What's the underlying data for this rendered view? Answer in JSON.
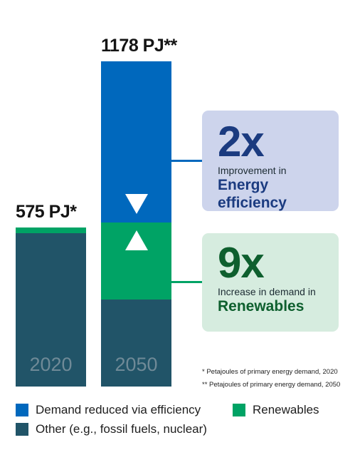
{
  "chart_data": {
    "type": "bar",
    "stacked": true,
    "unit": "PJ",
    "categories": [
      "2020",
      "2050"
    ],
    "total_labels": [
      "575 PJ*",
      "1178 PJ**"
    ],
    "series": [
      {
        "name": "Other (e.g., fossil fuels, nuclear)",
        "values": [
          555,
          315
        ],
        "color": "#215468"
      },
      {
        "name": "Renewables",
        "values": [
          20,
          280
        ],
        "color": "#00a365"
      },
      {
        "name": "Demand reduced via efficiency",
        "values": [
          0,
          583
        ],
        "color": "#0068bd"
      }
    ],
    "ylim": [
      0,
      1178
    ],
    "grid": false,
    "legend_placement": "bottom"
  },
  "callouts": [
    {
      "multiplier": "2x",
      "line1": "Improvement in",
      "line2": "Energy efficiency",
      "bg": "#cdd4ec",
      "accent": "#1b3b80",
      "line_color": "#0068bd"
    },
    {
      "multiplier": "9x",
      "line1": "Increase in demand in",
      "line2": "Renewables",
      "bg": "#d6ecdf",
      "accent": "#0e5f2e",
      "line_color": "#00a365"
    }
  ],
  "arrows": {
    "efficiency": "down-triangle-icon",
    "renewables": "up-triangle-icon"
  },
  "footnotes": [
    "* Petajoules of primary energy demand, 2020",
    "** Petajoules of primary energy demand, 2050"
  ],
  "legend": [
    {
      "label": "Demand reduced via efficiency",
      "color": "#0068bd"
    },
    {
      "label": "Renewables",
      "color": "#00a365"
    },
    {
      "label": "Other (e.g., fossil fuels, nuclear)",
      "color": "#215468"
    }
  ]
}
